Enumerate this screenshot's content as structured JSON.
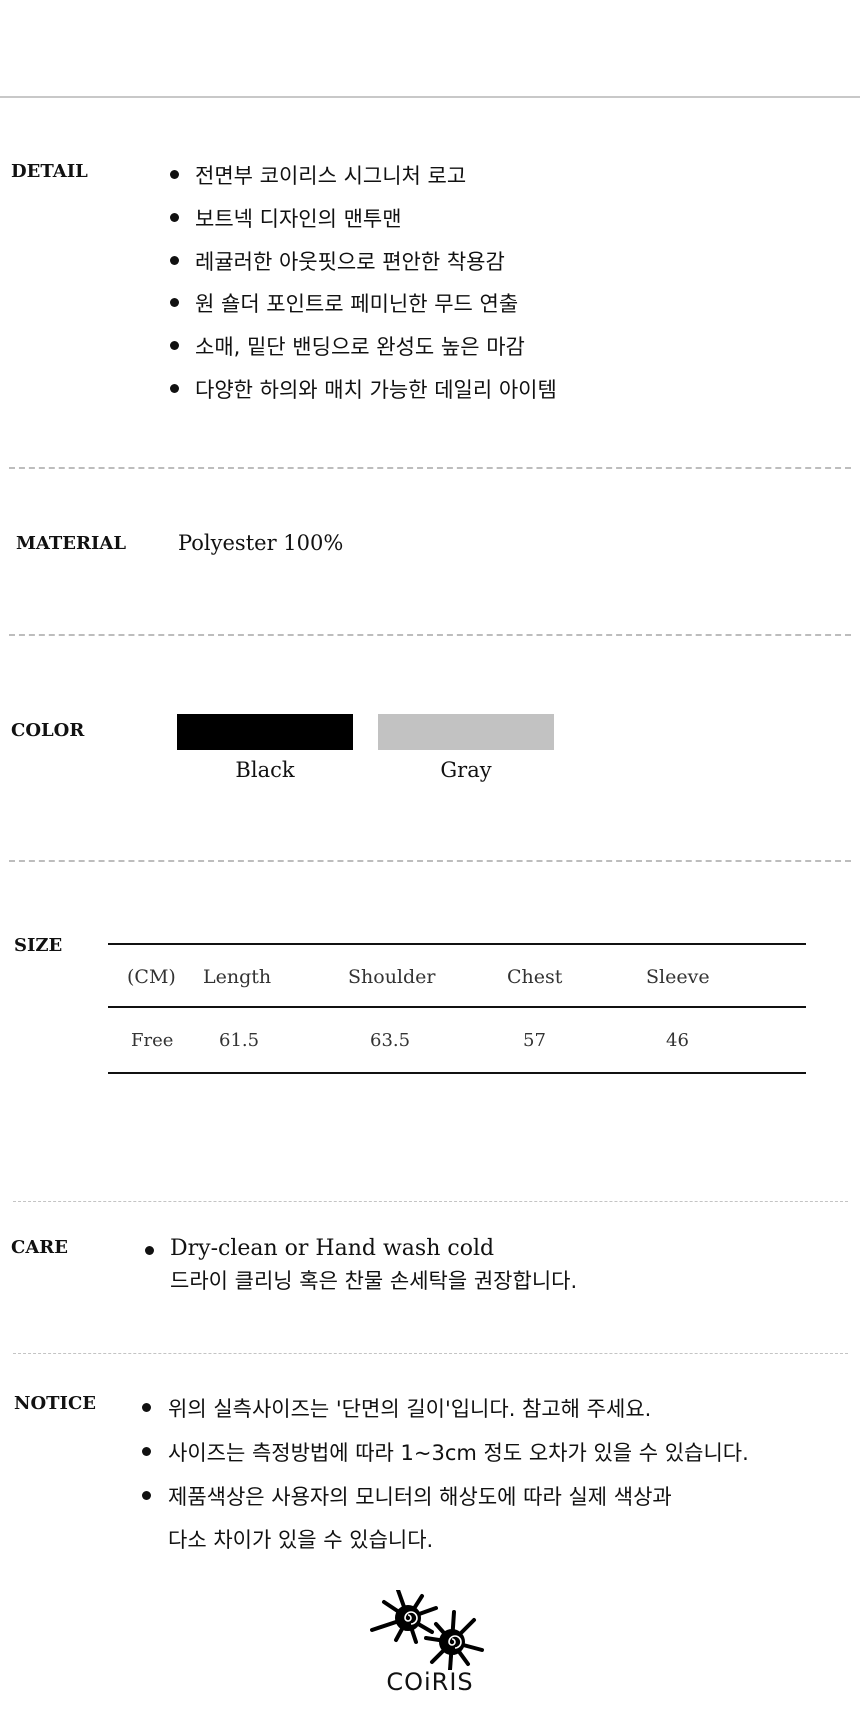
{
  "detail": {
    "label": "DETAIL",
    "items": [
      "전면부 코이리스 시그니처 로고",
      "보트넥 디자인의 맨투맨",
      "레귤러한 아웃핏으로 편안한 착용감",
      "원 숄더 포인트로 페미닌한 무드 연출",
      "소매, 밑단 밴딩으로 완성도 높은 마감",
      "다양한 하의와 매치 가능한 데일리 아이템"
    ]
  },
  "material": {
    "label": "MATERIAL",
    "value": "Polyester 100%"
  },
  "color": {
    "label": "COLOR",
    "options": [
      {
        "name": "Black",
        "hex": "#000000"
      },
      {
        "name": "Gray",
        "hex": "#c2c2c2"
      }
    ]
  },
  "size": {
    "label": "SIZE",
    "headers": [
      "(CM)",
      "Length",
      "Shoulder",
      "Chest",
      "Sleeve"
    ],
    "rows": [
      [
        "Free",
        "61.5",
        "63.5",
        "57",
        "46"
      ]
    ]
  },
  "care": {
    "label": "CARE",
    "line1": "Dry-clean or Hand wash cold",
    "line2": "드라이 클리닝 혹은 찬물 손세탁을 권장합니다."
  },
  "notice": {
    "label": "NOTICE",
    "items": [
      "위의 실측사이즈는 '단면의 길이'입니다. 참고해 주세요.",
      "사이즈는 측정방법에 따라 1~3cm 정도 오차가 있을 수 있습니다.",
      "제품색상은 사용자의 모니터의 해상도에 따라 실제 색상과"
    ],
    "continuation": "다소 차이가 있을 수 있습니다."
  },
  "logo": {
    "text": "COiRIS"
  }
}
